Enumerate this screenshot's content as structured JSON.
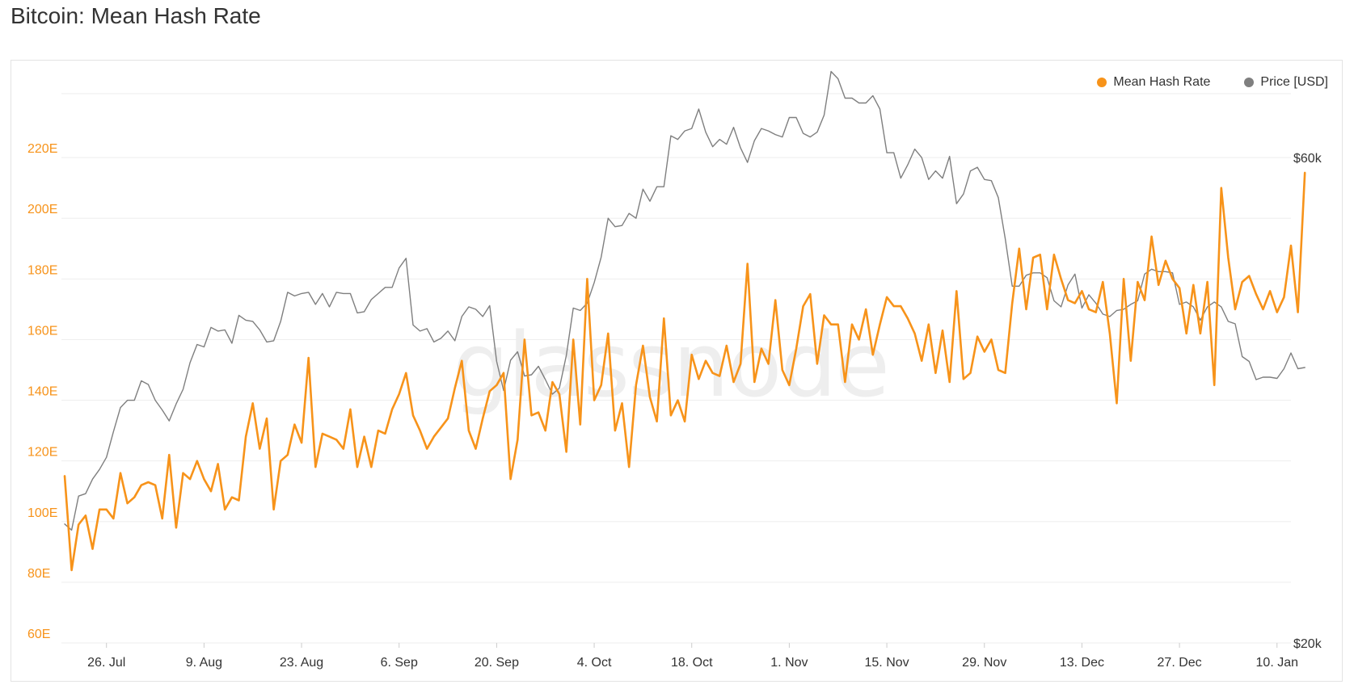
{
  "page": {
    "title": "Bitcoin: Mean Hash Rate"
  },
  "watermark": "glassnode",
  "legend": {
    "hash_label": "Mean Hash Rate",
    "price_label": "Price [USD]"
  },
  "colors": {
    "hash": "#f7931a",
    "price": "#7f7f7f",
    "grid": "#eeeeee",
    "axis_text": "#333333"
  },
  "chart_data": {
    "type": "line",
    "title": "Bitcoin: Mean Hash Rate",
    "x_axis": {
      "tick_labels": [
        "26. Jul",
        "9. Aug",
        "23. Aug",
        "6. Sep",
        "20. Sep",
        "4. Oct",
        "18. Oct",
        "1. Nov",
        "15. Nov",
        "29. Nov",
        "13. Dec",
        "27. Dec",
        "10. Jan"
      ],
      "tick_dates": [
        "2021-07-26",
        "2021-08-09",
        "2021-08-23",
        "2021-09-06",
        "2021-09-20",
        "2021-10-04",
        "2021-10-18",
        "2021-11-01",
        "2021-11-15",
        "2021-11-29",
        "2021-12-13",
        "2021-12-27",
        "2022-01-10"
      ],
      "start": "2021-07-20",
      "end": "2022-01-12"
    },
    "y_left": {
      "unit": "E",
      "ticks": [
        60,
        80,
        100,
        120,
        140,
        160,
        180,
        200,
        220
      ],
      "tick_labels": [
        "60E",
        "80E",
        "100E",
        "120E",
        "140E",
        "160E",
        "180E",
        "200E",
        "220E"
      ],
      "range": [
        60,
        240
      ]
    },
    "y_right": {
      "ticks": [
        20000,
        60000
      ],
      "tick_labels": [
        "$20k",
        "$60k"
      ],
      "range": [
        20000,
        65000
      ]
    },
    "grid": true,
    "legend_position": "top-right",
    "series": [
      {
        "name": "Mean Hash Rate",
        "axis": "left",
        "start": "2021-07-20",
        "values": [
          115,
          84,
          99,
          102,
          91,
          104,
          104,
          101,
          116,
          106,
          108,
          112,
          113,
          112,
          101,
          122,
          98,
          116,
          114,
          120,
          114,
          110,
          119,
          104,
          108,
          107,
          128,
          139,
          124,
          134,
          104,
          120,
          122,
          132,
          126,
          154,
          118,
          129,
          128,
          127,
          124,
          137,
          118,
          128,
          118,
          130,
          129,
          137,
          142,
          149,
          135,
          130,
          124,
          128,
          131,
          134,
          144,
          153,
          130,
          124,
          134,
          143,
          145,
          149,
          114,
          127,
          160,
          135,
          136,
          130,
          146,
          142,
          123,
          160,
          132,
          180,
          140,
          145,
          162,
          130,
          139,
          118,
          145,
          158,
          141,
          133,
          167,
          135,
          140,
          133,
          155,
          147,
          153,
          149,
          148,
          158,
          146,
          152,
          185,
          146,
          157,
          152,
          173,
          150,
          145,
          157,
          171,
          175,
          152,
          168,
          165,
          165,
          146,
          165,
          160,
          170,
          155,
          165,
          174,
          171,
          171,
          167,
          162,
          153,
          165,
          149,
          163,
          146,
          176,
          147,
          149,
          161,
          156,
          160,
          150,
          149,
          172,
          190,
          170,
          187,
          188,
          170,
          188,
          180,
          173,
          172,
          176,
          170,
          169,
          179,
          162,
          139,
          180,
          153,
          179,
          173,
          194,
          178,
          186,
          180,
          177,
          162,
          178,
          162,
          179,
          145,
          210,
          187,
          170,
          179,
          181,
          175,
          170,
          176,
          169,
          174,
          191,
          169,
          215
        ]
      },
      {
        "name": "Price [USD]",
        "axis": "right",
        "start": "2021-07-20",
        "values": [
          29800,
          29300,
          32100,
          32300,
          33500,
          34300,
          35300,
          37400,
          39400,
          40000,
          40000,
          41600,
          41300,
          40000,
          39200,
          38300,
          39700,
          40900,
          43100,
          44600,
          44400,
          46000,
          45700,
          45800,
          44700,
          47000,
          46600,
          46500,
          45800,
          44800,
          44900,
          46500,
          48900,
          48600,
          48800,
          48900,
          47900,
          48800,
          47700,
          48900,
          48800,
          48800,
          47200,
          47300,
          48300,
          48800,
          49300,
          49300,
          50900,
          51700,
          46200,
          45700,
          45900,
          44800,
          45100,
          45700,
          44900,
          46900,
          47700,
          47500,
          46900,
          47800,
          43200,
          40800,
          43300,
          44000,
          42000,
          42100,
          42800,
          41700,
          40500,
          41000,
          43700,
          47600,
          47400,
          48000,
          49700,
          51800,
          55000,
          54300,
          54400,
          55400,
          55000,
          57400,
          56400,
          57600,
          57600,
          61800,
          61500,
          62200,
          62400,
          64000,
          62100,
          60900,
          61500,
          61100,
          62500,
          60800,
          59600,
          61400,
          62400,
          62200,
          61900,
          61700,
          63300,
          63300,
          62000,
          61700,
          62100,
          63500,
          67100,
          66500,
          64900,
          64900,
          64500,
          64500,
          65100,
          64000,
          60400,
          60400,
          58300,
          59400,
          60700,
          60000,
          58200,
          58900,
          58300,
          60100,
          56200,
          57000,
          58900,
          59200,
          58200,
          58100,
          56700,
          53300,
          49400,
          49400,
          50300,
          50500,
          50500,
          50100,
          48200,
          47700,
          49500,
          50400,
          47600,
          48700,
          48000,
          47100,
          46900,
          47400,
          47500,
          47900,
          48200,
          50400,
          50800,
          50600,
          50600,
          50500,
          47900,
          48100,
          47700,
          46600,
          47700,
          48100,
          47700,
          46500,
          46300,
          43600,
          43200,
          41700,
          41900,
          41900,
          41800,
          42600,
          43900,
          42600,
          42700
        ]
      }
    ]
  }
}
